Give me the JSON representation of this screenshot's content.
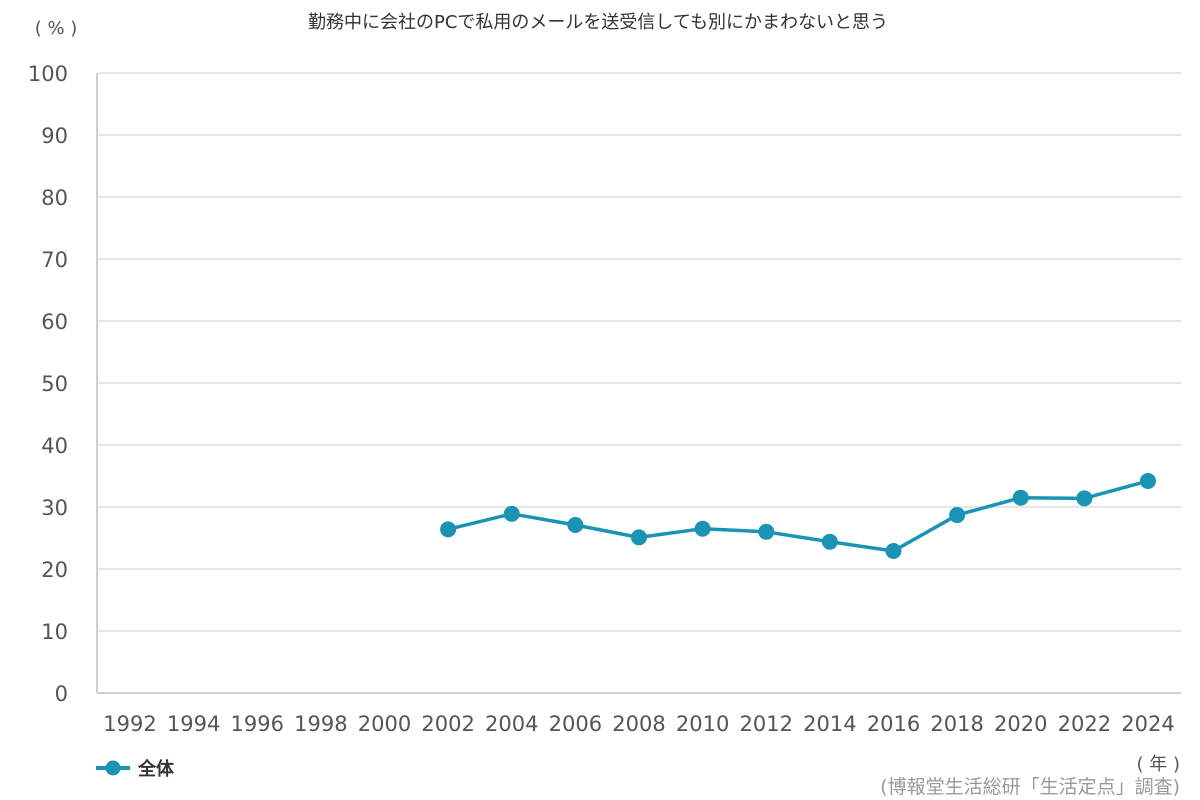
{
  "chart_data": {
    "type": "line",
    "title": "勤務中に会社のPCで私用のメールを送受信しても別にかまわないと思う",
    "ylabel": "( % )",
    "xlabel": "( 年 )",
    "source": "(博報堂生活総研「生活定点」調査)",
    "ylim": [
      0,
      100
    ],
    "yticks": [
      "0",
      "10",
      "20",
      "30",
      "40",
      "50",
      "60",
      "70",
      "80",
      "90",
      "100"
    ],
    "categories": [
      "1992",
      "1994",
      "1996",
      "1998",
      "2000",
      "2002",
      "2004",
      "2006",
      "2008",
      "2010",
      "2012",
      "2014",
      "2016",
      "2018",
      "2020",
      "2022",
      "2024"
    ],
    "grid": true,
    "legend_position": "bottom-left",
    "series": [
      {
        "name": "全体",
        "color": "#1a93b4",
        "values": [
          null,
          null,
          null,
          null,
          null,
          26.4,
          28.9,
          27.1,
          25.1,
          26.5,
          26.0,
          24.4,
          22.9,
          28.7,
          31.5,
          31.4,
          34.2
        ]
      }
    ]
  }
}
